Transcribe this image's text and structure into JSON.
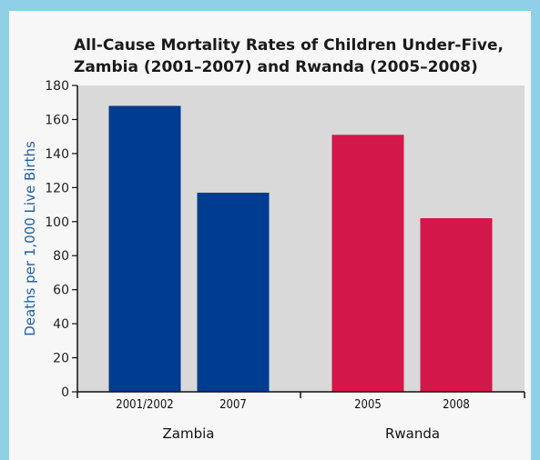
{
  "colors": {
    "page_border": "#8fd0e6",
    "panel": "#f7f7f7",
    "plot_bg": "#d9d9d9",
    "zambia_bar": "#003c8f",
    "rwanda_bar": "#d4174a",
    "ylabel": "#1f5fa8",
    "axis": "#111111"
  },
  "chart_data": {
    "type": "bar",
    "title_lines": [
      "All-Cause Mortality Rates of Children Under-Five,",
      "Zambia (2001–2007) and Rwanda (2005–2008)"
    ],
    "ylabel": "Deaths per 1,000 Live Births",
    "ylim": [
      0,
      180
    ],
    "yticks": [
      0,
      20,
      40,
      60,
      80,
      100,
      120,
      140,
      160,
      180
    ],
    "grid": false,
    "legend": "none",
    "groups": [
      {
        "name": "Zambia",
        "categories": [
          "2001/2002",
          "2007"
        ],
        "values": [
          168,
          117
        ],
        "color": "#003c8f"
      },
      {
        "name": "Rwanda",
        "categories": [
          "2005",
          "2008"
        ],
        "values": [
          151,
          102
        ],
        "color": "#d4174a"
      }
    ]
  }
}
